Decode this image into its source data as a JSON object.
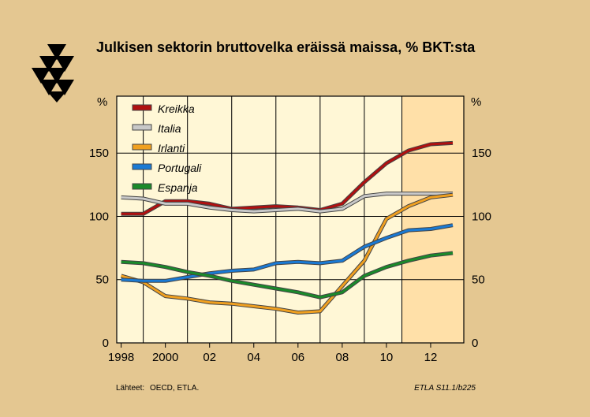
{
  "title": "Julkisen sektorin bruttovelka eräissä maissa, % BKT:sta",
  "source_label": "Lähteet:",
  "source_text": "OECD, ETLA.",
  "figure_code": "ETLA S11.1/b225",
  "colors": {
    "background": "#e4c791",
    "plot_background": "#fff7d6",
    "forecast_shade": "#ffe0a8",
    "Kreikka": "#b01010",
    "Italia": "#c8c8c8",
    "Irlanti": "#f0a020",
    "Portugali": "#1a7ad4",
    "Espanja": "#1a8a2a"
  },
  "chart_data": {
    "type": "line",
    "title": "Julkisen sektorin bruttovelka eräissä maissa, % BKT:sta",
    "ylabel_left": "%",
    "ylabel_right": "%",
    "xlim": [
      1997.8,
      2013.5
    ],
    "ylim": [
      0,
      195
    ],
    "forecast_start": 2010.7,
    "x_ticks": [
      {
        "value": 1998,
        "label": "1998"
      },
      {
        "value": 2000,
        "label": "2000"
      },
      {
        "value": 2002,
        "label": "02"
      },
      {
        "value": 2004,
        "label": "04"
      },
      {
        "value": 2006,
        "label": "06"
      },
      {
        "value": 2008,
        "label": "08"
      },
      {
        "value": 2010,
        "label": "10"
      },
      {
        "value": 2012,
        "label": "12"
      }
    ],
    "y_ticks": [
      {
        "value": 0,
        "label": "0"
      },
      {
        "value": 50,
        "label": "50"
      },
      {
        "value": 100,
        "label": "100"
      },
      {
        "value": 150,
        "label": "150"
      }
    ],
    "legend_position": "top-left",
    "series": [
      {
        "name": "Kreikka",
        "x": [
          1998,
          1999,
          2000,
          2001,
          2002,
          2003,
          2004,
          2005,
          2006,
          2007,
          2008,
          2009,
          2010,
          2011,
          2012,
          2013
        ],
        "values": [
          102,
          102,
          112,
          112,
          110,
          106,
          107,
          108,
          107,
          105,
          110,
          127,
          142,
          152,
          157,
          158
        ]
      },
      {
        "name": "Italia",
        "x": [
          1998,
          1999,
          2000,
          2001,
          2002,
          2003,
          2004,
          2005,
          2006,
          2007,
          2008,
          2009,
          2010,
          2011,
          2012,
          2013
        ],
        "values": [
          115,
          114,
          110,
          110,
          107,
          105,
          104,
          105,
          106,
          104,
          106,
          116,
          118,
          118,
          118,
          118
        ]
      },
      {
        "name": "Irlanti",
        "x": [
          1998,
          1999,
          2000,
          2001,
          2002,
          2003,
          2004,
          2005,
          2006,
          2007,
          2008,
          2009,
          2010,
          2011,
          2012,
          2013
        ],
        "values": [
          53,
          48,
          37,
          35,
          32,
          31,
          29,
          27,
          24,
          25,
          45,
          65,
          98,
          108,
          115,
          117
        ]
      },
      {
        "name": "Portugali",
        "x": [
          1998,
          1999,
          2000,
          2001,
          2002,
          2003,
          2004,
          2005,
          2006,
          2007,
          2008,
          2009,
          2010,
          2011,
          2012,
          2013
        ],
        "values": [
          50,
          49,
          49,
          52,
          55,
          57,
          58,
          63,
          64,
          63,
          65,
          76,
          83,
          89,
          90,
          93
        ]
      },
      {
        "name": "Espanja",
        "x": [
          1998,
          1999,
          2000,
          2001,
          2002,
          2003,
          2004,
          2005,
          2006,
          2007,
          2008,
          2009,
          2010,
          2011,
          2012,
          2013
        ],
        "values": [
          64,
          63,
          60,
          56,
          53,
          49,
          46,
          43,
          40,
          36,
          40,
          53,
          60,
          65,
          69,
          71
        ]
      }
    ]
  }
}
